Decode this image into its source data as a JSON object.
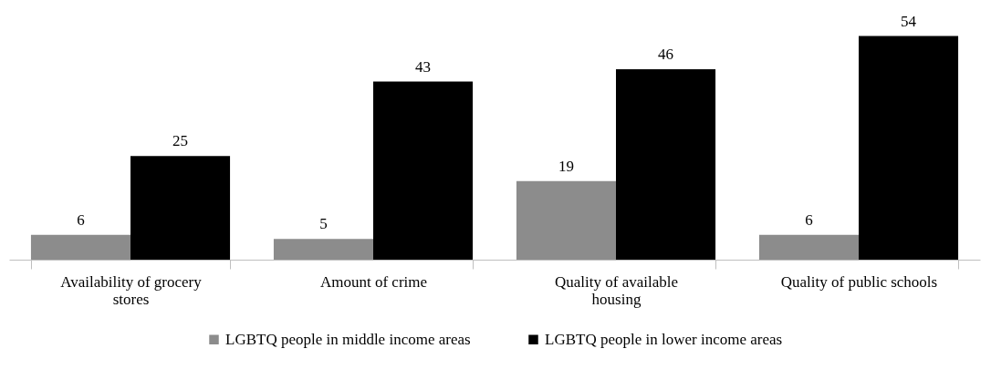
{
  "chart_data": {
    "type": "bar",
    "categories": [
      "Availability of grocery stores",
      "Amount of crime",
      "Quality of available housing",
      "Quality of public schools"
    ],
    "series": [
      {
        "name": "LGBTQ people in middle income areas",
        "color": "#8c8c8c",
        "values": [
          6,
          5,
          19,
          6
        ]
      },
      {
        "name": "LGBTQ people in lower income areas",
        "color": "#000000",
        "values": [
          25,
          43,
          46,
          54
        ]
      }
    ],
    "data_labels": true,
    "legend": "bottom",
    "grid": false
  }
}
